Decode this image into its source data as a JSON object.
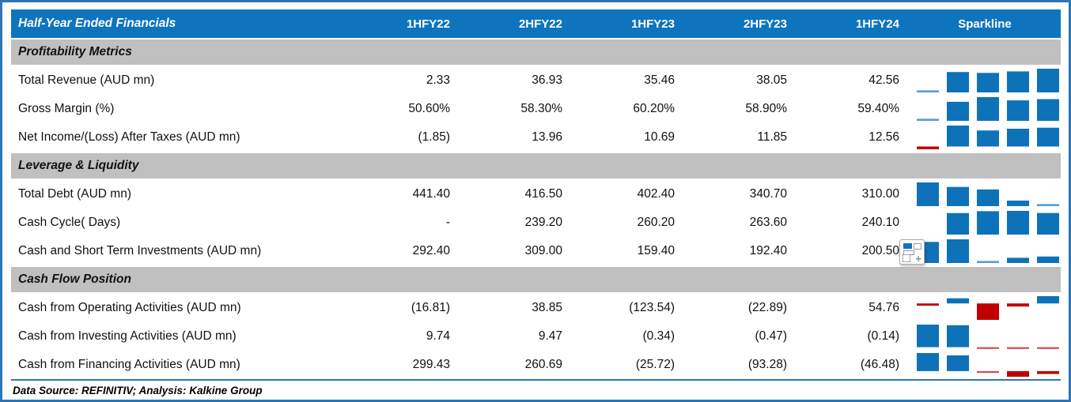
{
  "footer": {
    "text": "Data Source: REFINITIV; Analysis: Kalkine Group"
  },
  "icons": {
    "quick_analysis": "excel-quick-analysis-icon"
  },
  "colors": {
    "header_bg": "#0F74BE",
    "section_bg": "#C0C0C0",
    "frame_border": "#2E75B6",
    "divider_blue": "#2E75B6",
    "bar_blue": "#0E72B9",
    "bar_blue_light": "#5B9BD5",
    "bar_red": "#C00000",
    "text": "#111111",
    "header_text": "#FFFFFF"
  },
  "chart_data": {
    "type": "table",
    "title": "Half-Year Ended Financials",
    "columns": [
      "1HFY22",
      "2HFY22",
      "1HFY23",
      "2HFY23",
      "1HFY24"
    ],
    "sparkline_header": "Sparkline",
    "sparkline_type": "column",
    "sections": [
      {
        "name": "Profitability Metrics",
        "rows": [
          {
            "label": "Total Revenue (AUD mn)",
            "display": [
              "2.33",
              "36.93",
              "35.46",
              "38.05",
              "42.56"
            ],
            "values": [
              2.33,
              36.93,
              35.46,
              38.05,
              42.56
            ]
          },
          {
            "label": "Gross Margin (%)",
            "display": [
              "50.60%",
              "58.30%",
              "60.20%",
              "58.90%",
              "59.40%"
            ],
            "values": [
              50.6,
              58.3,
              60.2,
              58.9,
              59.4
            ]
          },
          {
            "label": "Net Income/(Loss) After Taxes (AUD mn)",
            "display": [
              "(1.85)",
              "13.96",
              "10.69",
              "11.85",
              "12.56"
            ],
            "values": [
              -1.85,
              13.96,
              10.69,
              11.85,
              12.56
            ]
          }
        ]
      },
      {
        "name": "Leverage & Liquidity",
        "rows": [
          {
            "label": "Total Debt (AUD mn)",
            "display": [
              "441.40",
              "416.50",
              "402.40",
              "340.70",
              "310.00"
            ],
            "values": [
              441.4,
              416.5,
              402.4,
              340.7,
              310.0
            ]
          },
          {
            "label": "Cash Cycle( Days)",
            "display": [
              "-",
              "239.20",
              "260.20",
              "263.60",
              "240.10"
            ],
            "values": [
              0,
              239.2,
              260.2,
              263.6,
              240.1
            ]
          },
          {
            "label": "Cash and Short Term Investments (AUD mn)",
            "display": [
              "292.40",
              "309.00",
              "159.40",
              "192.40",
              "200.50"
            ],
            "values": [
              292.4,
              309.0,
              159.4,
              192.4,
              200.5
            ],
            "has_quick_analysis_icon": true
          }
        ]
      },
      {
        "name": "Cash Flow Position",
        "rows": [
          {
            "label": "Cash from Operating Activities (AUD mn)",
            "display": [
              "(16.81)",
              "38.85",
              "(123.54)",
              "(22.89)",
              "54.76"
            ],
            "values": [
              -16.81,
              38.85,
              -123.54,
              -22.89,
              54.76
            ]
          },
          {
            "label": "Cash from Investing Activities (AUD mn)",
            "display": [
              "9.74",
              "9.47",
              "(0.34)",
              "(0.47)",
              "(0.14)"
            ],
            "values": [
              9.74,
              9.47,
              -0.34,
              -0.47,
              -0.14
            ]
          },
          {
            "label": "Cash from Financing Activities (AUD mn)",
            "display": [
              "299.43",
              "260.69",
              "(25.72)",
              "(93.28)",
              "(46.48)"
            ],
            "values": [
              299.43,
              260.69,
              -25.72,
              -93.28,
              -46.48
            ]
          }
        ]
      }
    ]
  }
}
